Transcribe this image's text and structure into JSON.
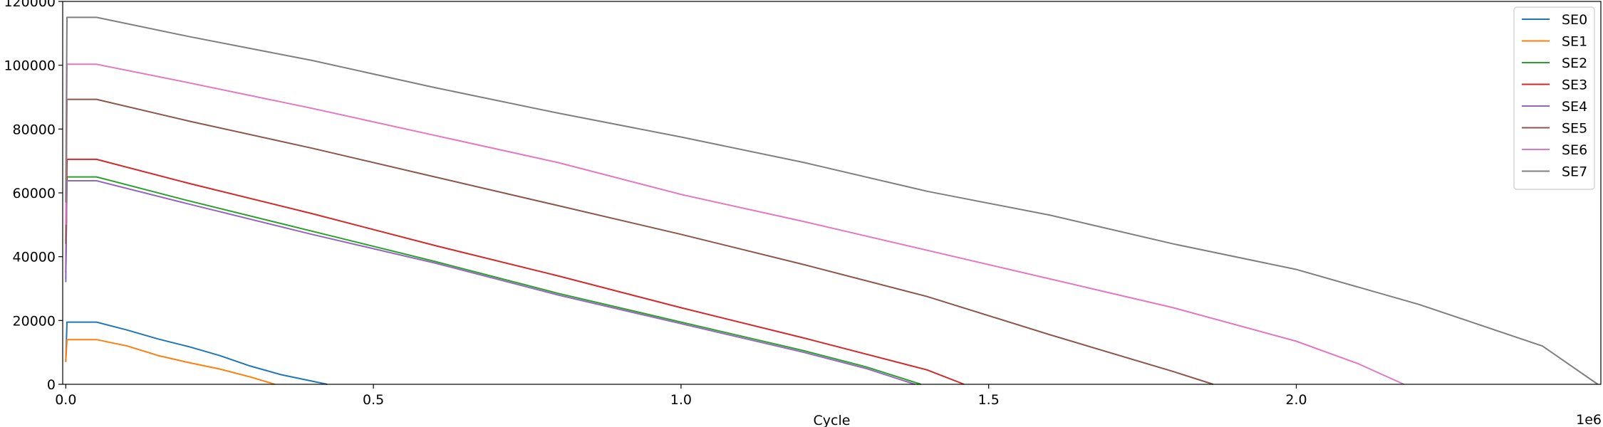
{
  "chart_data": {
    "type": "line",
    "title": "",
    "xlabel": "Cycle",
    "ylabel": "",
    "x_offset_label": "1e6",
    "xlim": [
      -5000,
      2495000
    ],
    "ylim": [
      0,
      120000
    ],
    "x_ticks": [
      0,
      500000,
      1000000,
      1500000,
      2000000
    ],
    "x_tick_labels": [
      "0.0",
      "0.5",
      "1.0",
      "1.5",
      "2.0"
    ],
    "y_ticks": [
      0,
      20000,
      40000,
      60000,
      80000,
      100000,
      120000
    ],
    "y_tick_labels": [
      "0",
      "20000",
      "40000",
      "60000",
      "80000",
      "100000",
      "120000"
    ],
    "grid": false,
    "legend_position": "top-right",
    "series": [
      {
        "name": "SE0",
        "color": "#1f77b4",
        "x": [
          0,
          2000,
          50000,
          100000,
          150000,
          200000,
          250000,
          300000,
          350000,
          425000
        ],
        "y": [
          7000,
          19500,
          19500,
          17000,
          14200,
          11800,
          9000,
          5700,
          3000,
          0
        ]
      },
      {
        "name": "SE1",
        "color": "#ff7f0e",
        "x": [
          0,
          2000,
          50000,
          100000,
          150000,
          200000,
          250000,
          300000,
          340000
        ],
        "y": [
          7000,
          14000,
          14000,
          12000,
          9000,
          6800,
          4800,
          2300,
          0
        ]
      },
      {
        "name": "SE2",
        "color": "#2ca02c",
        "x": [
          0,
          2000,
          50000,
          200000,
          400000,
          600000,
          800000,
          1000000,
          1200000,
          1300000,
          1390000
        ],
        "y": [
          33000,
          65000,
          65000,
          57500,
          48000,
          38500,
          28500,
          19500,
          10500,
          5500,
          0
        ]
      },
      {
        "name": "SE3",
        "color": "#d62728",
        "x": [
          0,
          2000,
          50000,
          200000,
          400000,
          600000,
          800000,
          1000000,
          1200000,
          1400000,
          1460000
        ],
        "y": [
          35000,
          70500,
          70500,
          63000,
          53500,
          43500,
          34000,
          24000,
          14500,
          4500,
          0
        ]
      },
      {
        "name": "SE4",
        "color": "#9467bd",
        "x": [
          0,
          2000,
          50000,
          200000,
          400000,
          600000,
          800000,
          1000000,
          1200000,
          1300000,
          1380000
        ],
        "y": [
          32000,
          63800,
          63800,
          56500,
          47000,
          38000,
          28000,
          19000,
          10000,
          5000,
          0
        ]
      },
      {
        "name": "SE5",
        "color": "#8c564b",
        "x": [
          0,
          2000,
          50000,
          200000,
          400000,
          600000,
          800000,
          1000000,
          1200000,
          1400000,
          1600000,
          1800000,
          1865000
        ],
        "y": [
          44000,
          89300,
          89300,
          82500,
          74000,
          65000,
          56000,
          47000,
          37500,
          27500,
          15500,
          4000,
          0
        ]
      },
      {
        "name": "SE6",
        "color": "#e377c2",
        "x": [
          0,
          2000,
          50000,
          200000,
          400000,
          600000,
          800000,
          1000000,
          1200000,
          1400000,
          1600000,
          1800000,
          2000000,
          2100000,
          2175000
        ],
        "y": [
          50000,
          100300,
          100300,
          94500,
          86500,
          78000,
          69500,
          59500,
          51000,
          42000,
          33000,
          24000,
          13500,
          6500,
          0
        ]
      },
      {
        "name": "SE7",
        "color": "#7f7f7f",
        "x": [
          0,
          2000,
          50000,
          200000,
          400000,
          600000,
          800000,
          1000000,
          1200000,
          1400000,
          1600000,
          1800000,
          2000000,
          2200000,
          2400000,
          2490000
        ],
        "y": [
          57000,
          115000,
          115000,
          109000,
          101500,
          93000,
          85000,
          77500,
          69500,
          60500,
          53000,
          44000,
          36000,
          25000,
          12000,
          0
        ]
      }
    ]
  }
}
